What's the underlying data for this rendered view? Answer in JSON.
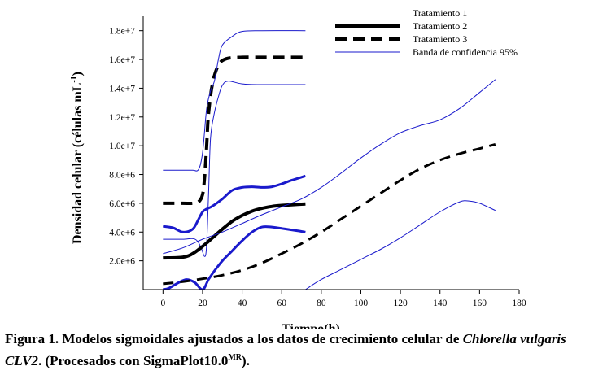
{
  "chart_data": {
    "type": "line",
    "title": "",
    "xlabel": "Tiempo(h)",
    "ylabel": "Densidad celular (células mL",
    "ylabel_sup": "-1",
    "ylabel_tail": ")",
    "xlim": [
      -10,
      180
    ],
    "ylim": [
      0,
      19000000
    ],
    "x_ticks": [
      0,
      20,
      40,
      60,
      80,
      100,
      120,
      140,
      160,
      180
    ],
    "x_tick_labels": [
      "0",
      "20",
      "40",
      "60",
      "80",
      "100",
      "120",
      "140",
      "160",
      "180"
    ],
    "y_ticks": [
      2000000,
      4000000,
      6000000,
      8000000,
      10000000,
      12000000,
      14000000,
      16000000,
      18000000
    ],
    "y_tick_labels": [
      "2.0e+6",
      "4.0e+6",
      "6.0e+6",
      "8.0e+6",
      "1.0e+7",
      "1.2e+7",
      "1.4e+7",
      "1.6e+7",
      "1.8e+7"
    ],
    "grid": false,
    "legend_position": "top-right",
    "legend": [
      {
        "label": "Tratamiento 1",
        "style": "none"
      },
      {
        "label": "Tratamiento 2",
        "style": "solid-thick",
        "color": "#000000"
      },
      {
        "label": "Tratamiento 3",
        "style": "dashed-thick",
        "color": "#000000"
      },
      {
        "label": "Banda de confidencia 95%",
        "style": "solid-thin",
        "color": "#1a1acc"
      }
    ],
    "series": [
      {
        "name": "Tratamiento 1",
        "color": "#000000",
        "style": "dashed",
        "width": 4,
        "x": [
          0,
          10,
          15,
          18,
          20,
          21,
          22,
          23,
          25,
          28,
          32,
          40,
          50,
          60,
          72
        ],
        "y": [
          6000000,
          6000000,
          6000000,
          6100000,
          6600000,
          7800000,
          9800000,
          12200000,
          14300000,
          15600000,
          16050000,
          16150000,
          16150000,
          16150000,
          16150000
        ]
      },
      {
        "name": "Tratamiento 1 IC superior",
        "color": "#1a1acc",
        "style": "solid",
        "width": 1,
        "x": [
          0,
          10,
          15,
          18,
          20,
          22,
          24,
          26,
          28,
          30,
          35,
          40,
          50,
          72
        ],
        "y": [
          8300000,
          8300000,
          8300000,
          8350000,
          9500000,
          12500000,
          13800000,
          14500000,
          16000000,
          17000000,
          17600000,
          17950000,
          18000000,
          18000000
        ]
      },
      {
        "name": "Tratamiento 1 IC inferior",
        "color": "#1a1acc",
        "style": "solid",
        "width": 1,
        "x": [
          0,
          10,
          16,
          19,
          21,
          22,
          23,
          24,
          26,
          28,
          30,
          33,
          40,
          50,
          72
        ],
        "y": [
          3500000,
          3500000,
          3520000,
          3000000,
          2300000,
          3000000,
          6500000,
          10500000,
          12300000,
          13400000,
          14200000,
          14500000,
          14300000,
          14250000,
          14250000
        ]
      },
      {
        "name": "Tratamiento 2",
        "color": "#000000",
        "style": "solid",
        "width": 4,
        "x": [
          0,
          10,
          15,
          20,
          25,
          30,
          35,
          40,
          45,
          50,
          55,
          60,
          65,
          72
        ],
        "y": [
          2200000,
          2250000,
          2500000,
          3000000,
          3600000,
          4200000,
          4750000,
          5150000,
          5450000,
          5650000,
          5780000,
          5850000,
          5900000,
          5950000
        ]
      },
      {
        "name": "Tratamiento 2 IC superior",
        "color": "#1a1acc",
        "style": "solid",
        "width": 3,
        "x": [
          0,
          5,
          10,
          15,
          18,
          20,
          22,
          25,
          30,
          35,
          40,
          45,
          50,
          55,
          60,
          65,
          72
        ],
        "y": [
          4400000,
          4300000,
          4000000,
          4200000,
          4900000,
          5400000,
          5600000,
          5800000,
          6300000,
          6900000,
          7100000,
          7150000,
          7100000,
          7150000,
          7350000,
          7600000,
          7900000
        ]
      },
      {
        "name": "Tratamiento 2 IC inferior",
        "color": "#1a1acc",
        "style": "solid",
        "width": 3,
        "x": [
          0,
          3,
          8,
          12,
          16,
          20,
          23,
          26,
          30,
          35,
          40,
          45,
          50,
          55,
          60,
          65,
          72
        ],
        "y": [
          0,
          100000,
          500000,
          700000,
          500000,
          0,
          700000,
          1300000,
          2000000,
          2700000,
          3400000,
          4000000,
          4350000,
          4350000,
          4250000,
          4150000,
          4000000
        ]
      },
      {
        "name": "Tratamiento 3",
        "color": "#000000",
        "style": "dashed",
        "width": 3,
        "x": [
          0,
          10,
          20,
          30,
          40,
          50,
          60,
          70,
          80,
          90,
          100,
          110,
          120,
          130,
          140,
          150,
          160,
          168
        ],
        "y": [
          400000,
          550000,
          750000,
          1000000,
          1350000,
          1850000,
          2500000,
          3200000,
          4000000,
          4900000,
          5800000,
          6700000,
          7600000,
          8400000,
          9000000,
          9450000,
          9800000,
          10100000
        ]
      },
      {
        "name": "Tratamiento 3 IC superior",
        "color": "#1a1acc",
        "style": "solid",
        "width": 1,
        "x": [
          0,
          10,
          20,
          30,
          40,
          50,
          60,
          70,
          80,
          90,
          100,
          110,
          120,
          130,
          140,
          150,
          160,
          168
        ],
        "y": [
          2500000,
          2900000,
          3500000,
          4000000,
          4600000,
          5200000,
          5750000,
          6300000,
          7100000,
          8100000,
          9150000,
          10100000,
          10900000,
          11400000,
          11800000,
          12600000,
          13700000,
          14600000
        ]
      },
      {
        "name": "Tratamiento 3 IC inferior",
        "color": "#1a1acc",
        "style": "solid",
        "width": 1,
        "x": [
          72,
          80,
          90,
          100,
          110,
          120,
          130,
          140,
          150,
          155,
          160,
          168
        ],
        "y": [
          0,
          700000,
          1400000,
          2100000,
          2800000,
          3600000,
          4500000,
          5400000,
          6100000,
          6150000,
          6000000,
          5500000
        ]
      }
    ]
  },
  "caption": {
    "part1": "Figura 1. Modelos sigmoidales ajustados a los datos de crecimiento celular de ",
    "italic1": "Chlorella vulgaris",
    "italic2": "CLV2",
    "part2": ". (Procesados con SigmaPlot10.0",
    "sup": "MR",
    "part3": ")."
  }
}
